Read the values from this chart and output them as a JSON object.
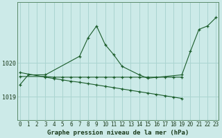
{
  "background_color": "#cceae8",
  "grid_color": "#aad4d0",
  "line_color": "#1a5c2a",
  "title": "Graphe pression niveau de la mer (hPa)",
  "yticks": [
    1019,
    1020
  ],
  "xticks": [
    0,
    1,
    2,
    3,
    4,
    5,
    6,
    7,
    8,
    9,
    10,
    11,
    12,
    13,
    14,
    15,
    16,
    17,
    18,
    19,
    20,
    21,
    22,
    23
  ],
  "ylim": [
    1018.3,
    1021.8
  ],
  "xlim": [
    -0.3,
    23.3
  ],
  "series": [
    {
      "x": [
        0,
        1,
        3,
        7,
        8,
        9,
        10,
        11,
        12,
        14,
        15,
        19,
        20,
        21,
        22,
        23
      ],
      "y": [
        1019.35,
        1019.65,
        1019.65,
        1020.2,
        1020.75,
        1021.1,
        1020.55,
        1020.25,
        1019.9,
        1019.65,
        1019.55,
        1019.65,
        1020.35,
        1021.0,
        1021.1,
        1021.35
      ]
    },
    {
      "x": [
        0,
        3,
        4,
        5,
        6,
        7,
        8,
        9,
        10,
        11,
        12,
        13,
        14,
        15,
        16,
        17,
        18,
        19
      ],
      "y": [
        1019.72,
        1019.58,
        1019.54,
        1019.5,
        1019.46,
        1019.43,
        1019.39,
        1019.35,
        1019.31,
        1019.27,
        1019.23,
        1019.19,
        1019.15,
        1019.11,
        1019.07,
        1019.03,
        1018.99,
        1018.95
      ]
    },
    {
      "x": [
        0,
        3,
        4,
        5,
        6,
        7,
        8,
        9,
        10,
        11,
        12,
        13,
        14,
        15,
        16,
        17,
        18,
        19
      ],
      "y": [
        1019.6,
        1019.6,
        1019.58,
        1019.58,
        1019.58,
        1019.58,
        1019.58,
        1019.58,
        1019.58,
        1019.58,
        1019.58,
        1019.58,
        1019.58,
        1019.58,
        1019.58,
        1019.58,
        1019.58,
        1019.58
      ]
    }
  ]
}
